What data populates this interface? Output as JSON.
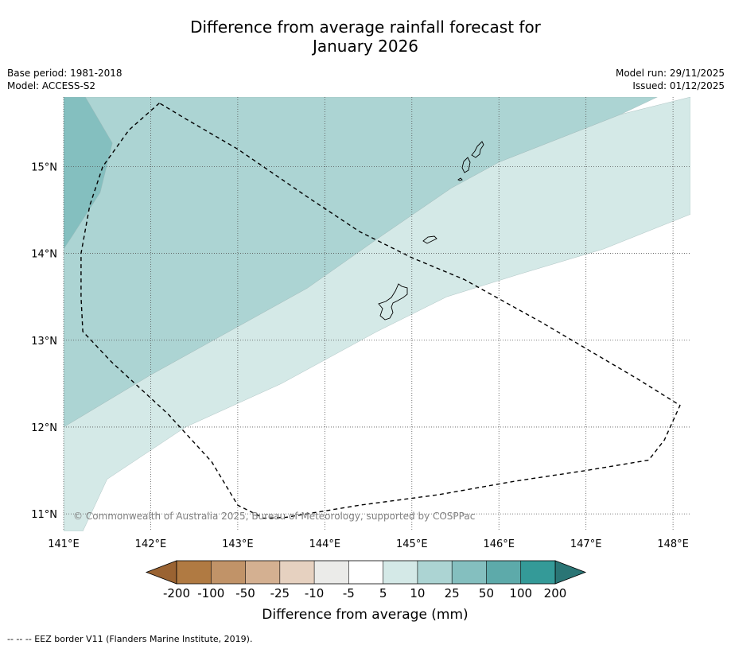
{
  "title_line1": "Difference from average rainfall forecast for",
  "title_line2": "January 2026",
  "meta": {
    "base_period": "Base period: 1981-2018",
    "model": "Model: ACCESS-S2",
    "model_run": "Model run: 29/11/2025",
    "issued": "Issued: 01/12/2025"
  },
  "copyright": "© Commonwealth of Australia 2025, Bureau of Meteorology, supported by COSPPac",
  "footnote": "--  --  -- EEZ border V11 (Flanders Marine Institute, 2019).",
  "chart_data": {
    "type": "heatmap",
    "subtype": "filled-contour map",
    "title": "Difference from average rainfall forecast for January 2026",
    "xlim": [
      141.0,
      148.2
    ],
    "ylim": [
      10.8,
      15.8
    ],
    "x_ticks": [
      {
        "value": 141,
        "label": "141°E"
      },
      {
        "value": 142,
        "label": "142°E"
      },
      {
        "value": 143,
        "label": "143°E"
      },
      {
        "value": 144,
        "label": "144°E"
      },
      {
        "value": 145,
        "label": "145°E"
      },
      {
        "value": 146,
        "label": "146°E"
      },
      {
        "value": 147,
        "label": "147°E"
      },
      {
        "value": 148,
        "label": "148°E"
      }
    ],
    "y_ticks": [
      {
        "value": 15,
        "label": "15°N"
      },
      {
        "value": 14,
        "label": "14°N"
      },
      {
        "value": 13,
        "label": "13°N"
      },
      {
        "value": 12,
        "label": "12°N"
      },
      {
        "value": 11,
        "label": "11°N"
      }
    ],
    "grid": true,
    "colorbar": {
      "label": "Difference from average (mm)",
      "ticks": [
        "-200",
        "-100",
        "-50",
        "-25",
        "-10",
        "-5",
        "5",
        "10",
        "25",
        "50",
        "100",
        "200"
      ],
      "under_color": "#9a6332",
      "over_color": "#2a7575",
      "colors": [
        "#b07a42",
        "#c19368",
        "#d4b091",
        "#e6d1c0",
        "#ebebe9",
        "#ffffff",
        "#d4e9e7",
        "#acd4d3",
        "#84bfbf",
        "#5daaaa",
        "#349a98"
      ]
    },
    "regions": [
      {
        "name": "5 to 10 mm",
        "color": "#d4e9e7",
        "polygon": [
          [
            141.0,
            10.8
          ],
          [
            141.0,
            12.0
          ],
          [
            142.0,
            12.6
          ],
          [
            143.8,
            13.6
          ],
          [
            144.65,
            14.2
          ],
          [
            145.45,
            14.75
          ],
          [
            146.0,
            15.05
          ],
          [
            147.4,
            15.6
          ],
          [
            148.2,
            15.8
          ],
          [
            148.2,
            14.45
          ],
          [
            147.2,
            14.05
          ],
          [
            146.2,
            13.75
          ],
          [
            145.4,
            13.5
          ],
          [
            144.6,
            13.1
          ],
          [
            143.5,
            12.5
          ],
          [
            142.4,
            12.0
          ],
          [
            141.5,
            11.4
          ],
          [
            141.22,
            10.8
          ]
        ]
      },
      {
        "name": "10 to 25 mm",
        "color": "#acd4d3",
        "polygon": [
          [
            141.0,
            12.0
          ],
          [
            142.0,
            12.6
          ],
          [
            143.8,
            13.6
          ],
          [
            144.65,
            14.2
          ],
          [
            145.45,
            14.75
          ],
          [
            146.0,
            15.05
          ],
          [
            147.4,
            15.6
          ],
          [
            147.82,
            15.8
          ],
          [
            141.0,
            15.8
          ]
        ]
      },
      {
        "name": "25 to 50 mm",
        "color": "#84bfbf",
        "polygon": [
          [
            141.0,
            15.8
          ],
          [
            141.25,
            15.8
          ],
          [
            141.56,
            15.27
          ],
          [
            141.42,
            14.7
          ],
          [
            141.1,
            14.2
          ],
          [
            141.0,
            14.05
          ]
        ]
      }
    ],
    "overlays": [
      {
        "name": "EEZ border",
        "style": "dashed",
        "path": [
          [
            142.1,
            15.73
          ],
          [
            141.75,
            15.42
          ],
          [
            141.45,
            15.0
          ],
          [
            141.3,
            14.55
          ],
          [
            141.2,
            14.0
          ],
          [
            141.2,
            13.5
          ],
          [
            141.22,
            13.1
          ],
          [
            141.55,
            12.75
          ],
          [
            142.2,
            12.15
          ],
          [
            142.7,
            11.6
          ],
          [
            143.0,
            11.1
          ],
          [
            143.3,
            10.95
          ],
          [
            143.55,
            10.96
          ],
          [
            144.4,
            11.1
          ],
          [
            145.3,
            11.22
          ],
          [
            146.2,
            11.38
          ],
          [
            147.0,
            11.5
          ],
          [
            147.72,
            11.62
          ],
          [
            147.9,
            11.85
          ],
          [
            148.08,
            12.25
          ],
          [
            147.6,
            12.55
          ],
          [
            146.5,
            13.2
          ],
          [
            145.6,
            13.7
          ],
          [
            145.0,
            13.95
          ],
          [
            144.4,
            14.25
          ],
          [
            143.8,
            14.65
          ],
          [
            143.0,
            15.2
          ],
          [
            142.4,
            15.55
          ],
          [
            142.1,
            15.73
          ]
        ]
      }
    ]
  }
}
